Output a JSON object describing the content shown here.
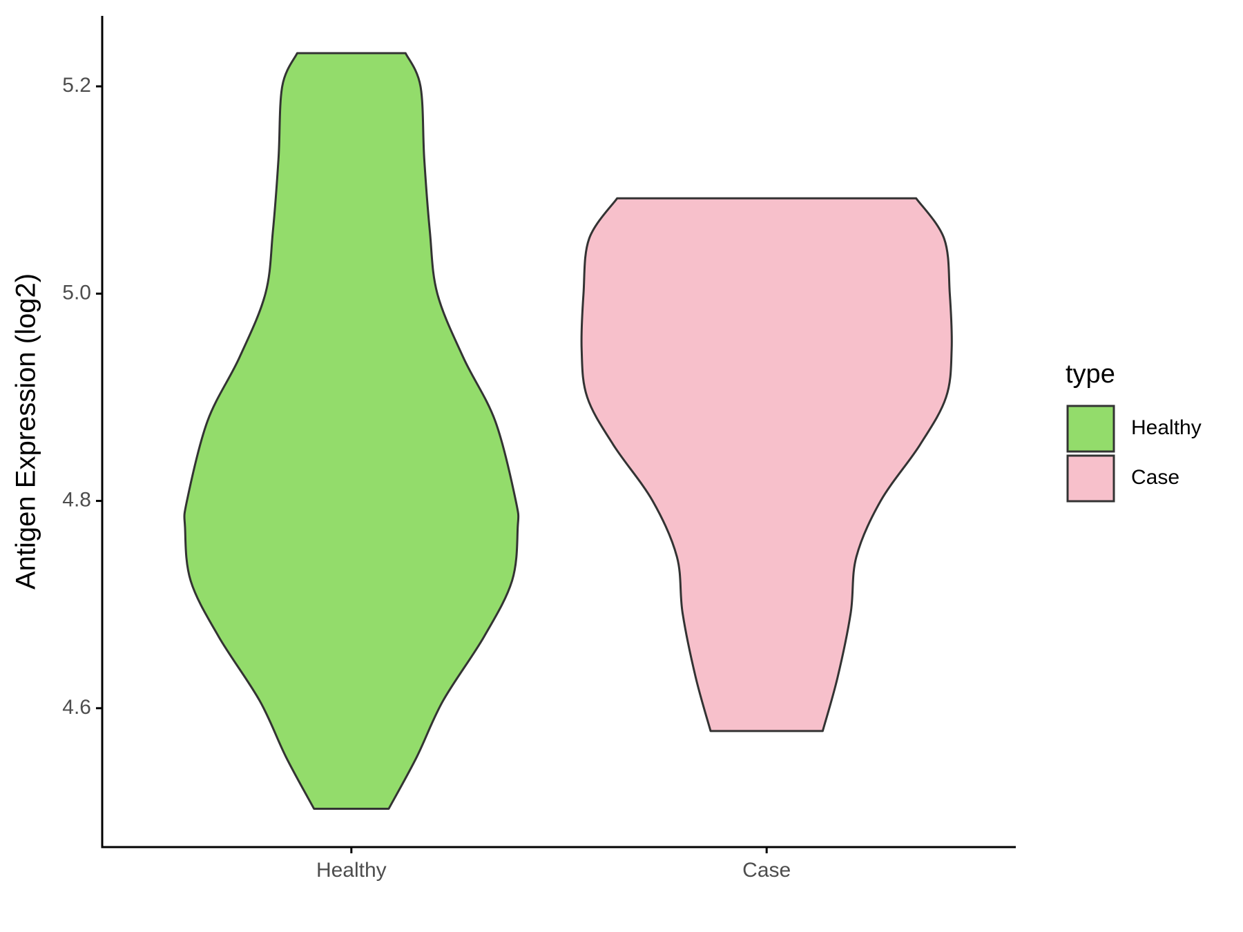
{
  "chart_data": {
    "type": "violin",
    "ylabel": "Antigen Expression (log2)",
    "categories": [
      "Healthy",
      "Case"
    ],
    "legend_title": "type",
    "legend": "right",
    "ylim": [
      4.466,
      5.268
    ],
    "yticks": [
      4.6,
      4.8,
      {
        "value": 5,
        "label": "5.0"
      },
      5.2
    ],
    "series": [
      {
        "name": "Healthy",
        "color": "#93dc6b",
        "y": [
          5.232,
          5.2,
          5.13,
          5.06,
          5.0,
          4.938,
          4.877,
          4.8,
          4.774,
          4.723,
          4.669,
          4.607,
          4.553,
          4.503
        ],
        "width": [
          0.29,
          0.37,
          0.39,
          0.42,
          0.46,
          0.6,
          0.77,
          0.88,
          0.89,
          0.86,
          0.71,
          0.49,
          0.35,
          0.2
        ]
      },
      {
        "name": "Case",
        "color": "#f7c0cb",
        "y": [
          5.092,
          5.053,
          5.0,
          4.946,
          4.9,
          4.854,
          4.8,
          4.746,
          4.692,
          4.63,
          4.578
        ],
        "width": [
          0.8,
          0.95,
          0.98,
          0.99,
          0.96,
          0.82,
          0.61,
          0.48,
          0.45,
          0.38,
          0.3
        ]
      }
    ]
  }
}
